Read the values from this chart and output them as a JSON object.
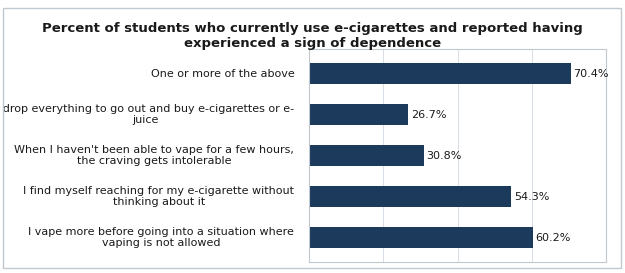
{
  "title": "Percent of students who currently use e-cigarettes and reported having\nexperienced a sign of dependence",
  "categories": [
    "I vape more before going into a situation where\nvaping is not allowed",
    "I find myself reaching for my e-cigarette without\nthinking about it",
    "When I haven't been able to vape for a few hours,\nthe craving gets intolerable",
    "I drop everything to go out and buy e-cigarettes or e-\njuice",
    "One or more of the above"
  ],
  "values": [
    60.2,
    54.3,
    30.8,
    26.7,
    70.4
  ],
  "bar_color": "#1b3a5c",
  "value_color": "#1a1a1a",
  "background_color": "#ffffff",
  "border_color": "#c0c8d0",
  "grid_color": "#d0d8e0",
  "xlim": [
    0,
    80
  ],
  "title_fontsize": 9.5,
  "label_fontsize": 8.0,
  "value_fontsize": 8.0,
  "bar_height": 0.52
}
